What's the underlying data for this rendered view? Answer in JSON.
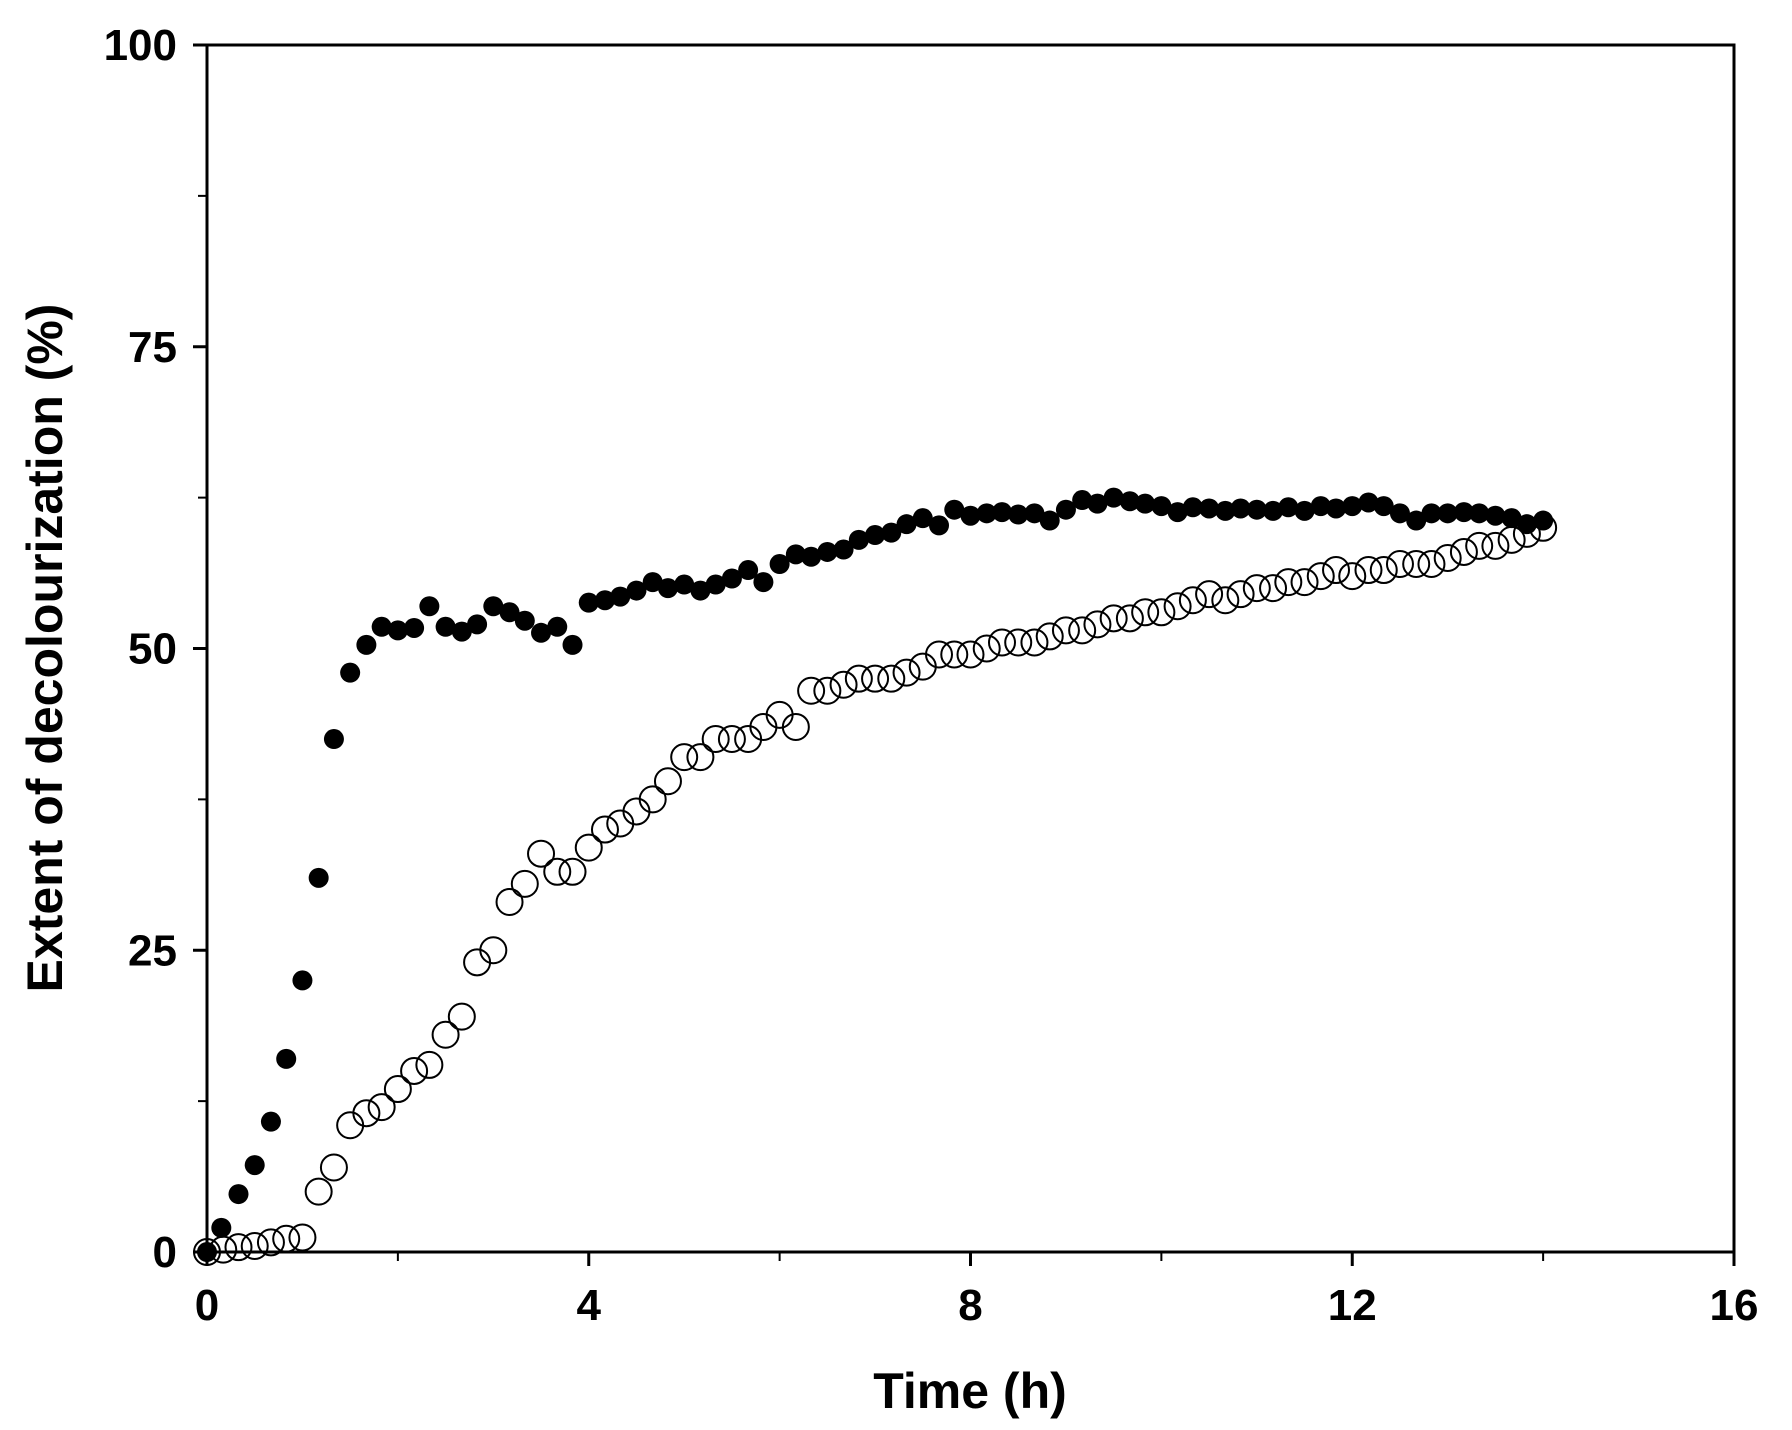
{
  "chart_data": {
    "type": "scatter",
    "title": "",
    "xlabel": "Time (h)",
    "ylabel": "Extent of decolourization (%)",
    "xlim": [
      0,
      16
    ],
    "ylim": [
      0,
      100
    ],
    "xticks": [
      0,
      4,
      8,
      12,
      16
    ],
    "xticks_minor": [
      2,
      6,
      10,
      14
    ],
    "yticks": [
      0,
      25,
      50,
      75,
      100
    ],
    "yticks_minor": [
      12.5,
      37.5,
      62.5,
      87.5
    ],
    "grid": false,
    "legend": null,
    "series": [
      {
        "name": "filled",
        "marker": "filled-circle",
        "color": "#000000",
        "x": [
          0.0,
          0.15,
          0.33,
          0.5,
          0.67,
          0.83,
          1.0,
          1.17,
          1.33,
          1.5,
          1.67,
          1.83,
          2.0,
          2.17,
          2.33,
          2.5,
          2.67,
          2.83,
          3.0,
          3.17,
          3.33,
          3.5,
          3.67,
          3.83,
          4.0,
          4.17,
          4.33,
          4.5,
          4.67,
          4.83,
          5.0,
          5.17,
          5.33,
          5.5,
          5.67,
          5.83,
          6.0,
          6.17,
          6.33,
          6.5,
          6.67,
          6.83,
          7.0,
          7.17,
          7.33,
          7.5,
          7.67,
          7.83,
          8.0,
          8.17,
          8.33,
          8.5,
          8.67,
          8.83,
          9.0,
          9.17,
          9.33,
          9.5,
          9.67,
          9.83,
          10.0,
          10.17,
          10.33,
          10.5,
          10.67,
          10.83,
          11.0,
          11.17,
          11.33,
          11.5,
          11.67,
          11.83,
          12.0,
          12.17,
          12.33,
          12.5,
          12.67,
          12.83,
          13.0,
          13.17,
          13.33,
          13.5,
          13.67,
          13.83,
          14.0
        ],
        "y": [
          0,
          2,
          4.8,
          7.2,
          10.8,
          16,
          22.5,
          31,
          42.5,
          48,
          50.3,
          51.8,
          51.5,
          51.7,
          53.5,
          51.8,
          51.4,
          52,
          53.5,
          53,
          52.3,
          51.3,
          51.8,
          50.3,
          53.8,
          54,
          54.3,
          54.8,
          55.5,
          55,
          55.3,
          54.8,
          55.3,
          55.8,
          56.5,
          55.5,
          57,
          57.8,
          57.6,
          58,
          58.2,
          59,
          59.4,
          59.6,
          60.3,
          60.8,
          60.2,
          61.5,
          61,
          61.2,
          61.3,
          61.1,
          61.2,
          60.6,
          61.5,
          62.3,
          62,
          62.5,
          62.2,
          62,
          61.8,
          61.3,
          61.7,
          61.6,
          61.4,
          61.6,
          61.5,
          61.4,
          61.7,
          61.4,
          61.8,
          61.6,
          61.8,
          62.1,
          61.8,
          61.2,
          60.6,
          61.2,
          61.2,
          61.3,
          61.2,
          61,
          60.8,
          60.3,
          60.6
        ]
      },
      {
        "name": "open",
        "marker": "open-circle",
        "color": "#000000",
        "x": [
          0.0,
          0.17,
          0.33,
          0.5,
          0.67,
          0.83,
          1.0,
          1.17,
          1.33,
          1.5,
          1.67,
          1.83,
          2.0,
          2.17,
          2.33,
          2.5,
          2.67,
          2.83,
          3.0,
          3.17,
          3.33,
          3.5,
          3.67,
          3.83,
          4.0,
          4.17,
          4.33,
          4.5,
          4.67,
          4.83,
          5.0,
          5.17,
          5.33,
          5.5,
          5.67,
          5.83,
          6.0,
          6.17,
          6.33,
          6.5,
          6.67,
          6.83,
          7.0,
          7.17,
          7.33,
          7.5,
          7.67,
          7.83,
          8.0,
          8.17,
          8.33,
          8.5,
          8.67,
          8.83,
          9.0,
          9.17,
          9.33,
          9.5,
          9.67,
          9.83,
          10.0,
          10.17,
          10.33,
          10.5,
          10.67,
          10.83,
          11.0,
          11.17,
          11.33,
          11.5,
          11.67,
          11.83,
          12.0,
          12.17,
          12.33,
          12.5,
          12.67,
          12.83,
          13.0,
          13.17,
          13.33,
          13.5,
          13.67,
          13.83,
          14.0
        ],
        "y": [
          0,
          0.2,
          0.4,
          0.5,
          0.8,
          1.1,
          1.2,
          5,
          7,
          10.5,
          11.5,
          12,
          13.5,
          15,
          15.5,
          18,
          19.5,
          24,
          25,
          29,
          30.5,
          33,
          31.5,
          31.5,
          33.5,
          35,
          35.5,
          36.5,
          37.5,
          39,
          41,
          41,
          42.5,
          42.5,
          42.5,
          43.5,
          44.5,
          43.5,
          46.5,
          46.5,
          47,
          47.5,
          47.5,
          47.5,
          48,
          48.5,
          49.5,
          49.5,
          49.5,
          50,
          50.5,
          50.5,
          50.5,
          51,
          51.5,
          51.5,
          52,
          52.5,
          52.5,
          53,
          53,
          53.5,
          54,
          54.5,
          54,
          54.5,
          55,
          55,
          55.5,
          55.5,
          56,
          56.5,
          56,
          56.5,
          56.5,
          57,
          57,
          57,
          57.5,
          58,
          58.5,
          58.5,
          59,
          59.5,
          60
        ]
      }
    ]
  }
}
